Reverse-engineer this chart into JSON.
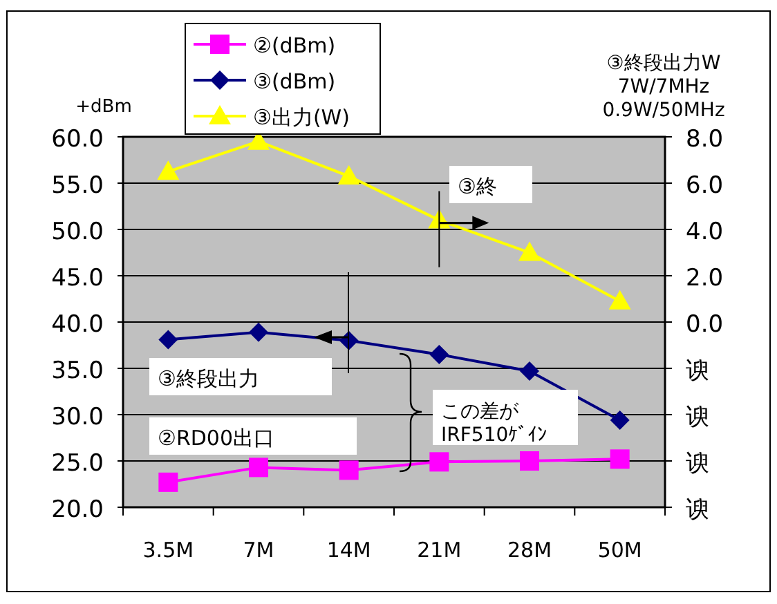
{
  "chart_data": {
    "type": "line",
    "ylabel": "+dBm",
    "categories": [
      "3.5M",
      "7M",
      "14M",
      "21M",
      "28M",
      "50M"
    ],
    "series": [
      {
        "name": "②(dBm)",
        "color": "#ff00ff",
        "marker": "square",
        "values": [
          22.7,
          24.3,
          24.0,
          24.9,
          25.0,
          25.2
        ]
      },
      {
        "name": "③(dBm)",
        "color": "#000080",
        "marker": "diamond",
        "values": [
          38.1,
          38.9,
          38.0,
          36.5,
          34.7,
          29.4
        ]
      },
      {
        "name": "③出力(W)",
        "color": "#ffff00",
        "marker": "triangle",
        "axis": "y2",
        "values": [
          6.5,
          7.8,
          6.3,
          4.4,
          3.0,
          0.9
        ]
      }
    ],
    "ylim": [
      20,
      60
    ],
    "yticks": [
      {
        "value": 20,
        "label": "20.0"
      },
      {
        "value": 25,
        "label": "25.0"
      },
      {
        "value": 30,
        "label": "30.0"
      },
      {
        "value": 35,
        "label": "35.0"
      },
      {
        "value": 40,
        "label": "40.0"
      },
      {
        "value": 45,
        "label": "45.0"
      },
      {
        "value": 50,
        "label": "50.0"
      },
      {
        "value": 55,
        "label": "55.0"
      },
      {
        "value": 60,
        "label": "60.0"
      }
    ],
    "y2lim": [
      -8,
      8
    ],
    "y2ticks": [
      {
        "value": -8,
        "label": "谀"
      },
      {
        "value": -6,
        "label": "谀"
      },
      {
        "value": -4,
        "label": "谀"
      },
      {
        "value": -2,
        "label": "谀"
      },
      {
        "value": 0,
        "label": "0.0"
      },
      {
        "value": 2,
        "label": "2.0"
      },
      {
        "value": 4,
        "label": "4.0"
      },
      {
        "value": 6,
        "label": "6.0"
      },
      {
        "value": 8,
        "label": "8.0"
      }
    ],
    "grid": "y",
    "legend": "top left",
    "annotations": [
      "③終段出力W\n7W/7MHz\n0.9W/50MHz",
      {
        "text": "③終",
        "x": "21M",
        "y": 50.7
      },
      "③終段出力",
      "②RD00出口",
      "この差が\nIRF510ｹﾞｲﾝ"
    ]
  }
}
